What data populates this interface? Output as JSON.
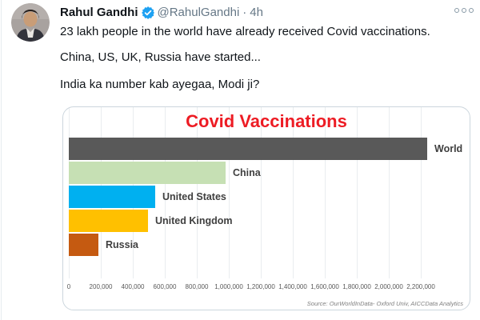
{
  "tweet": {
    "author": "Rahul Gandhi",
    "handle": "@RahulGandhi",
    "separator": "·",
    "timestamp": "4h",
    "lines": {
      "0": "23 lakh people in the world have already received Covid vaccinations.",
      "1": "China, US, UK, Russia have started...",
      "2": "India ka number kab ayegaa, Modi ji?"
    }
  },
  "icons": {
    "verified_badge": "verified-checkmark",
    "more_menu": "three-dots"
  },
  "colors": {
    "verified_blue": "#1da1f2",
    "text_primary": "#0f1419",
    "text_secondary": "#657786",
    "card_border": "#ccd6dd",
    "chart_title_red": "#ed1c24",
    "gridline": "#e9edf0"
  },
  "chart_data": {
    "type": "bar",
    "orientation": "horizontal",
    "title": "Covid Vaccinations",
    "categories": [
      "World",
      "China",
      "United States",
      "United Kingdom",
      "Russia"
    ],
    "values": [
      2240000,
      980000,
      540000,
      495000,
      185000
    ],
    "bar_colors": [
      "#595959",
      "#c6e0b4",
      "#00b0f0",
      "#ffc000",
      "#c55a11"
    ],
    "x_tick_values": [
      0,
      200000,
      400000,
      600000,
      800000,
      1000000,
      1200000,
      1400000,
      1600000,
      1800000,
      2000000,
      2200000
    ],
    "x_tick_labels": [
      "0",
      "200,000",
      "400,000",
      "600,000",
      "800,000",
      "1,000,000",
      "1,200,000",
      "1,400,000",
      "1,600,000",
      "1,800,000",
      "2,000,000",
      "2,200,000"
    ],
    "xlim": [
      0,
      2510000
    ],
    "grid": true,
    "legend": false,
    "source": "Source: OurWorldInData- Oxford Univ, AICCData Analytics"
  }
}
